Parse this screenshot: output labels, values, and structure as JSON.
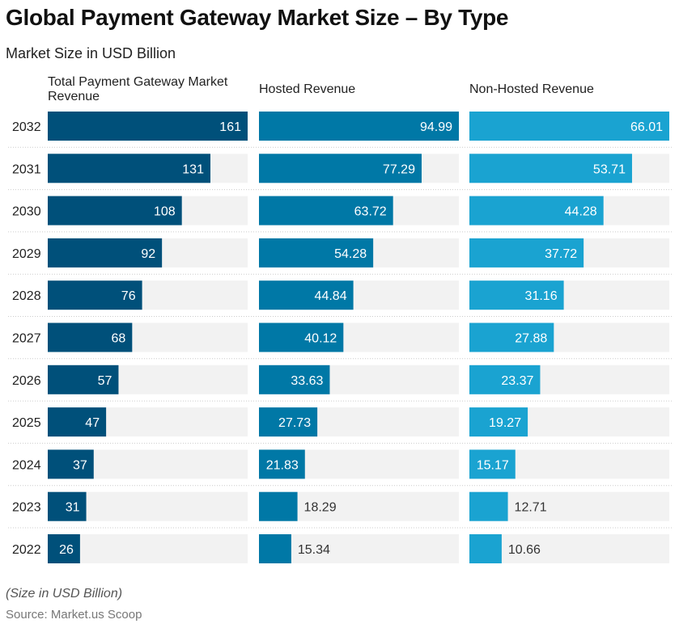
{
  "title": "Global Payment Gateway Market Size – By Type",
  "subtitle": "Market Size in USD Billion",
  "footer": {
    "note": "(Size in USD Billion)",
    "source": "Source: Market.us Scoop"
  },
  "chart_data": {
    "type": "bar",
    "orientation": "horizontal",
    "layout": "small-multiples",
    "categories": [
      "2032",
      "2031",
      "2030",
      "2029",
      "2028",
      "2027",
      "2026",
      "2025",
      "2024",
      "2023",
      "2022"
    ],
    "series": [
      {
        "name": "Total Payment Gateway Market Revenue",
        "color": "#00507a",
        "values": [
          "161",
          "131",
          "108",
          "92",
          "76",
          "68",
          "57",
          "47",
          "37",
          "31",
          "26"
        ]
      },
      {
        "name": "Hosted Revenue",
        "color": "#0078a6",
        "values": [
          "94.99",
          "77.29",
          "63.72",
          "54.28",
          "44.84",
          "40.12",
          "33.63",
          "27.73",
          "21.83",
          "18.29",
          "15.34"
        ]
      },
      {
        "name": "Non-Hosted Revenue",
        "color": "#1aa3d1",
        "values": [
          "66.01",
          "53.71",
          "44.28",
          "37.72",
          "31.16",
          "27.88",
          "23.37",
          "19.27",
          "15.17",
          "12.71",
          "10.66"
        ]
      }
    ],
    "track_color": "#f2f2f2",
    "grid": false
  }
}
